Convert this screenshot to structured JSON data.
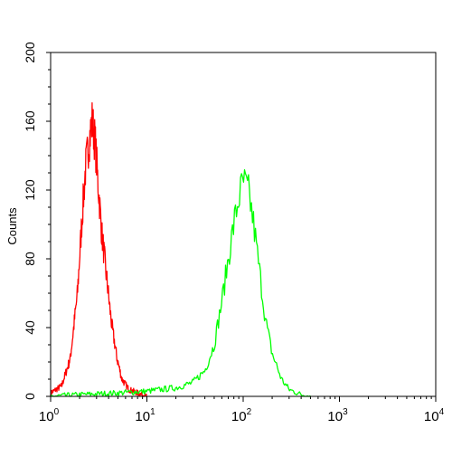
{
  "chart_data": {
    "type": "line",
    "title": "",
    "xlabel": "",
    "ylabel": "Counts",
    "xscale": "log",
    "xlim": [
      1,
      10000
    ],
    "ylim": [
      0,
      200
    ],
    "grid": false,
    "legend": "none",
    "y_ticks": [
      {
        "value": 0,
        "label": "0"
      },
      {
        "value": 40,
        "label": "40"
      },
      {
        "value": 80,
        "label": "80"
      },
      {
        "value": 120,
        "label": "120"
      },
      {
        "value": 160,
        "label": "160"
      },
      {
        "value": 200,
        "label": "200"
      }
    ],
    "x_ticks": [
      {
        "value": 1,
        "base": "10",
        "exp": "0"
      },
      {
        "value": 10,
        "base": "10",
        "exp": "1"
      },
      {
        "value": 100,
        "base": "10",
        "exp": "2"
      },
      {
        "value": 1000,
        "base": "10",
        "exp": "3"
      },
      {
        "value": 10000,
        "base": "10",
        "exp": "4"
      }
    ],
    "series": [
      {
        "color": "#ff0000",
        "x": [
          1.0,
          1.3,
          1.6,
          1.9,
          2.1,
          2.3,
          2.5,
          2.7,
          2.9,
          3.1,
          3.4,
          3.8,
          4.3,
          4.9,
          5.5,
          6.5,
          8.0,
          10.0
        ],
        "y": [
          2,
          6,
          22,
          60,
          100,
          132,
          148,
          160,
          148,
          125,
          95,
          70,
          42,
          22,
          10,
          4,
          2,
          0
        ]
      },
      {
        "color": "#00ff00",
        "x": [
          1.0,
          2.0,
          5.0,
          10.0,
          20.0,
          30.0,
          40.0,
          50.0,
          60.0,
          70.0,
          80.0,
          90.0,
          100.0,
          115.0,
          130.0,
          150.0,
          170.0,
          200.0,
          250.0,
          300.0,
          400.0,
          500.0
        ],
        "y": [
          0,
          1,
          2,
          3,
          5,
          8,
          15,
          30,
          55,
          80,
          100,
          115,
          125,
          118,
          98,
          70,
          45,
          25,
          10,
          4,
          1,
          0
        ]
      }
    ]
  }
}
